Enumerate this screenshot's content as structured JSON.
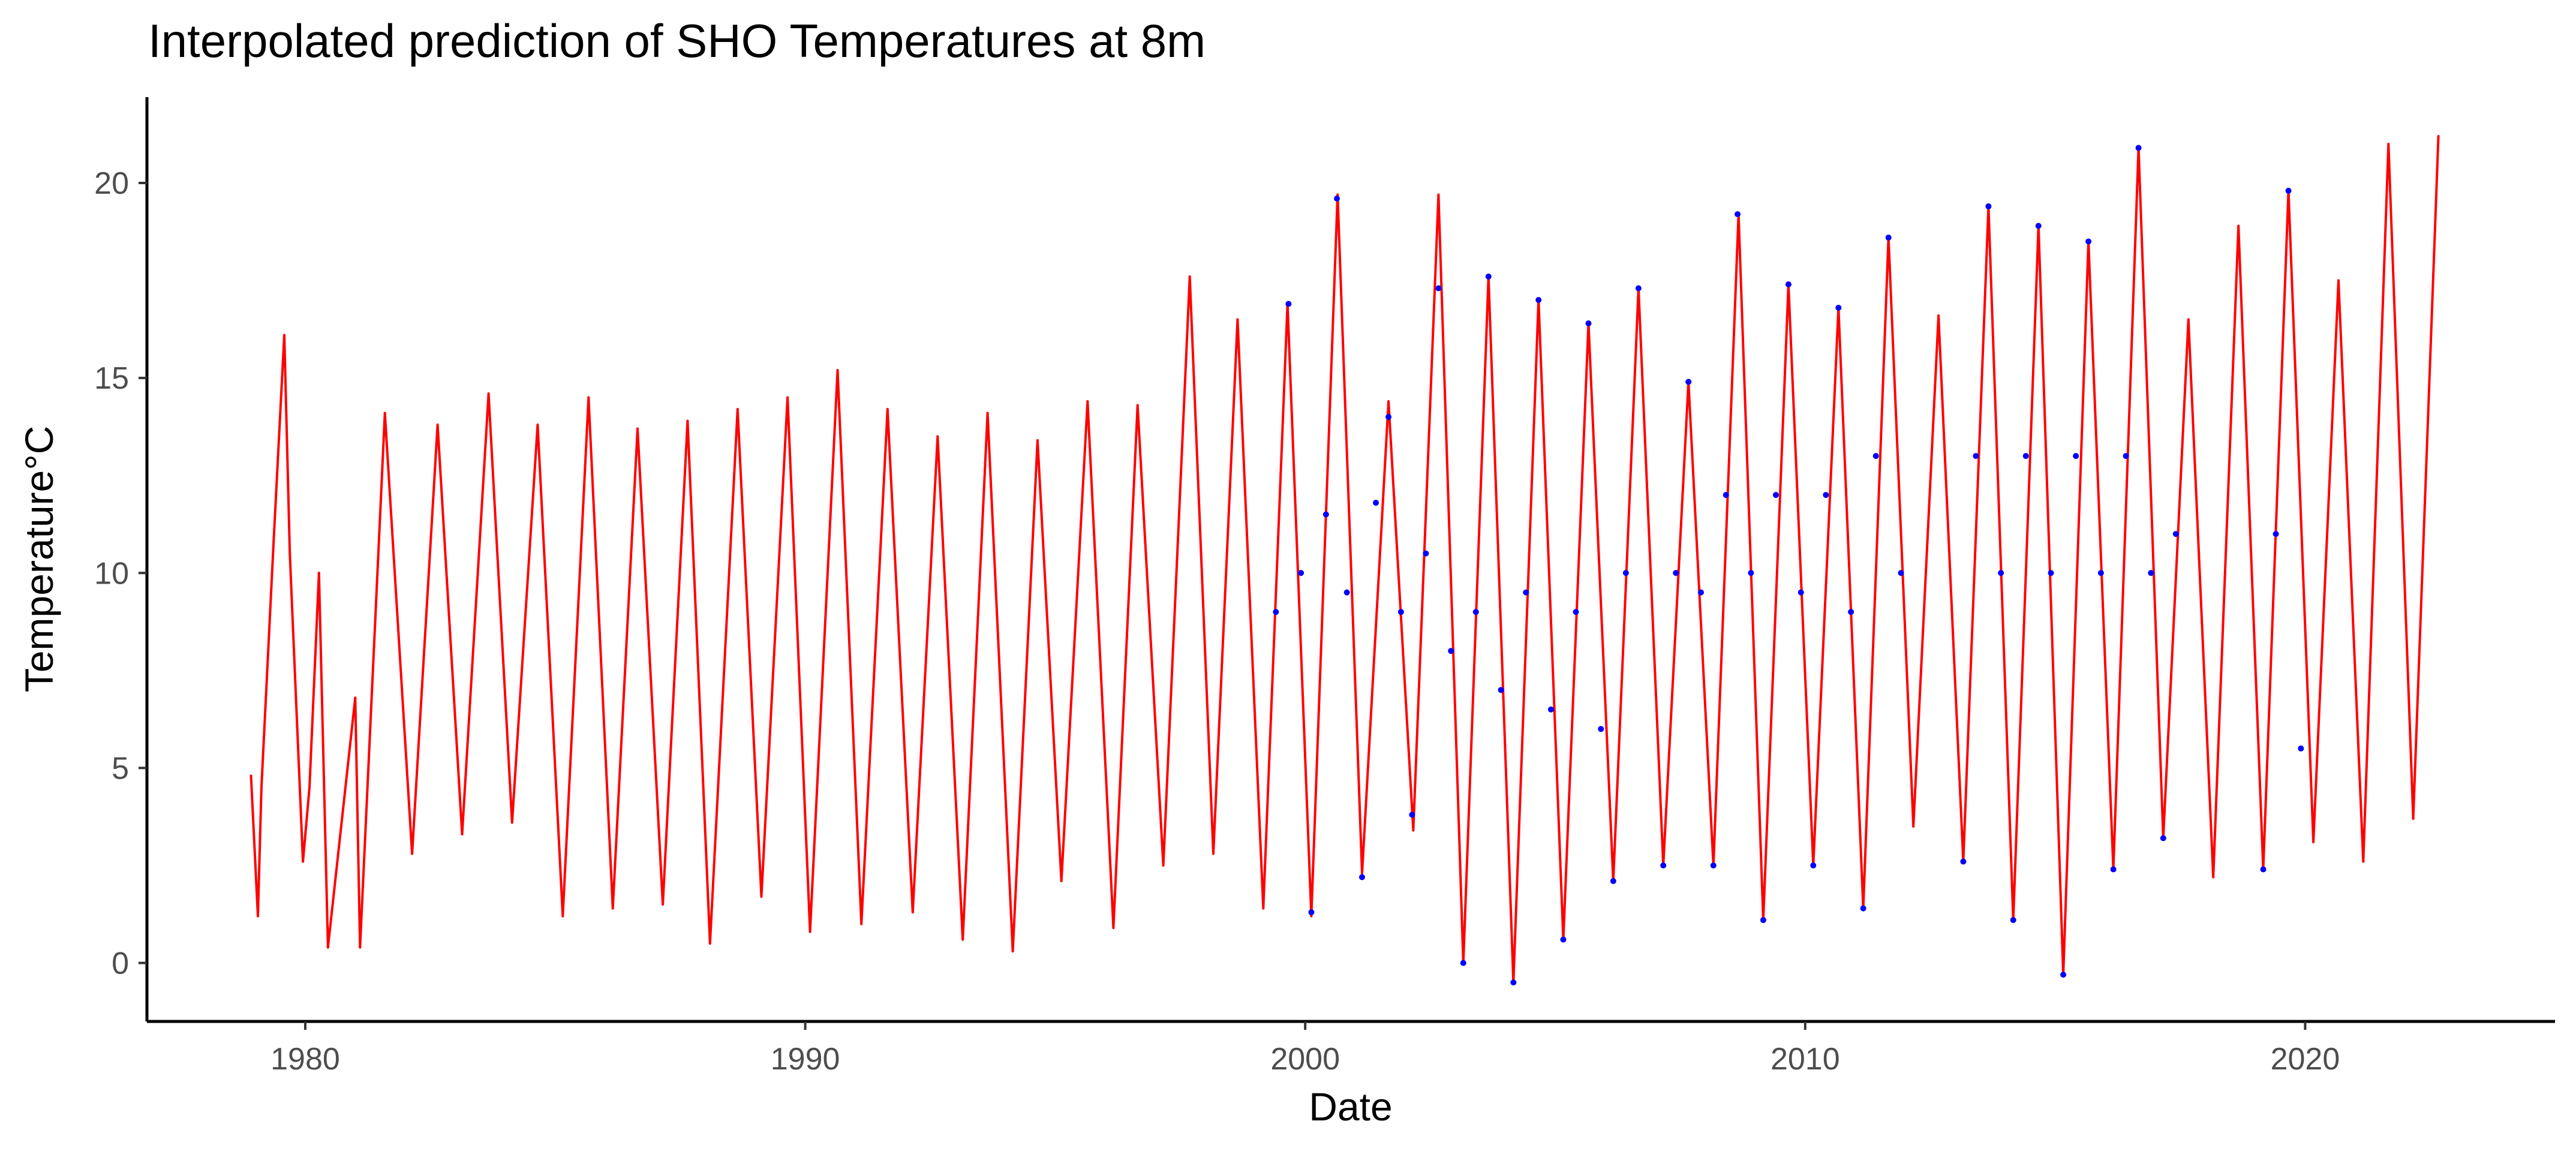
{
  "chart_data": {
    "type": "line",
    "title": "Interpolated prediction of SHO Temperatures at 8m",
    "xlabel": "Date",
    "ylabel": "Temperature°C",
    "xlim": [
      "1976-11-01",
      "2024-12-31"
    ],
    "ylim": [
      -1.5,
      22.2
    ],
    "x_ticks": [
      {
        "value": "1980-01-01",
        "label": "1980"
      },
      {
        "value": "1990-01-01",
        "label": "1990"
      },
      {
        "value": "2000-01-01",
        "label": "2000"
      },
      {
        "value": "2010-01-01",
        "label": "2010"
      },
      {
        "value": "2020-01-01",
        "label": "2020"
      }
    ],
    "y_ticks": [
      {
        "value": 0,
        "label": "0"
      },
      {
        "value": 5,
        "label": "5"
      },
      {
        "value": 10,
        "label": "10"
      },
      {
        "value": 15,
        "label": "15"
      },
      {
        "value": 20,
        "label": "20"
      }
    ],
    "grid": false,
    "legend": "none",
    "series": [
      {
        "color": "#ff0000",
        "style": "line",
        "x": [
          "1978-12-01",
          "1979-01-20",
          "1979-02-15",
          "1979-05-15",
          "1979-08-01",
          "1979-09-10",
          "1979-12-15",
          "1980-02-01",
          "1980-04-10",
          "1980-06-15",
          "1981-01-01",
          "1981-02-05",
          "1981-08-05",
          "1982-02-20",
          "1982-08-25",
          "1983-02-20",
          "1983-09-01",
          "1984-02-20",
          "1984-08-25",
          "1985-02-25",
          "1985-09-01",
          "1986-02-25",
          "1986-08-25",
          "1987-02-25",
          "1987-08-25",
          "1988-02-05",
          "1988-08-25",
          "1989-02-15",
          "1989-08-25",
          "1990-02-05",
          "1990-08-25",
          "1991-02-15",
          "1991-08-25",
          "1992-02-25",
          "1992-08-25",
          "1993-02-25",
          "1993-08-25",
          "1994-02-25",
          "1994-08-25",
          "1995-02-15",
          "1995-08-25",
          "1996-03-01",
          "1996-08-25",
          "1997-03-01",
          "1997-09-10",
          "1998-03-01",
          "1998-08-25",
          "1999-03-01",
          "1999-08-25",
          "2000-02-15",
          "2000-08-25",
          "2001-02-20",
          "2001-09-01",
          "2002-03-01",
          "2002-09-01",
          "2003-03-01",
          "2003-09-01",
          "2004-03-01",
          "2004-09-01",
          "2005-03-01",
          "2005-09-01",
          "2006-03-01",
          "2006-09-01",
          "2007-03-01",
          "2007-09-01",
          "2008-03-01",
          "2008-09-01",
          "2009-03-01",
          "2009-09-01",
          "2010-03-01",
          "2010-09-01",
          "2011-03-01",
          "2011-09-01",
          "2012-03-01",
          "2012-09-01",
          "2013-03-01",
          "2013-09-01",
          "2014-03-01",
          "2014-09-01",
          "2015-03-01",
          "2015-09-01",
          "2016-03-01",
          "2016-09-01",
          "2017-03-01",
          "2017-09-01",
          "2018-03-01",
          "2018-09-01",
          "2019-03-01",
          "2019-09-01",
          "2020-03-01",
          "2020-09-01",
          "2021-03-01",
          "2021-09-01",
          "2022-03-01",
          "2022-09-01"
        ],
        "y": [
          4.8,
          1.2,
          4.5,
          10.8,
          16.1,
          10.5,
          2.6,
          4.5,
          10.0,
          0.4,
          6.8,
          0.4,
          14.1,
          2.8,
          13.8,
          3.3,
          14.6,
          3.6,
          13.8,
          1.2,
          14.5,
          1.4,
          13.7,
          1.5,
          13.9,
          0.5,
          14.2,
          1.7,
          14.5,
          0.8,
          15.2,
          1.0,
          14.2,
          1.3,
          13.5,
          0.6,
          14.1,
          0.3,
          13.4,
          2.1,
          14.4,
          0.9,
          14.3,
          2.5,
          17.6,
          2.8,
          16.5,
          1.4,
          16.9,
          1.2,
          19.7,
          2.3,
          14.4,
          3.4,
          19.7,
          0.0,
          17.6,
          -0.5,
          17.0,
          0.6,
          16.4,
          2.1,
          17.3,
          2.5,
          14.9,
          2.5,
          19.2,
          1.1,
          17.4,
          2.5,
          16.8,
          1.4,
          18.6,
          3.5,
          16.6,
          2.6,
          19.4,
          1.1,
          18.9,
          -0.3,
          18.5,
          2.4,
          20.9,
          3.2,
          16.5,
          2.2,
          18.9,
          2.4,
          19.8,
          3.1,
          17.5,
          2.6,
          21.0,
          3.7,
          21.2
        ]
      },
      {
        "color": "#0000ff",
        "style": "points",
        "x": [
          "1999-06-01",
          "1999-09-01",
          "1999-12-01",
          "2000-02-15",
          "2000-06-01",
          "2000-08-20",
          "2000-11-01",
          "2001-02-20",
          "2001-06-01",
          "2001-09-01",
          "2001-12-01",
          "2002-02-20",
          "2002-06-01",
          "2002-09-01",
          "2002-12-01",
          "2003-03-01",
          "2003-06-01",
          "2003-09-01",
          "2003-12-01",
          "2004-03-01",
          "2004-06-01",
          "2004-09-01",
          "2004-12-01",
          "2005-03-01",
          "2005-06-01",
          "2005-09-01",
          "2005-12-01",
          "2006-03-01",
          "2006-06-01",
          "2006-09-01",
          "2007-03-01",
          "2007-06-01",
          "2007-09-01",
          "2007-12-01",
          "2008-03-01",
          "2008-06-01",
          "2008-08-25",
          "2008-12-01",
          "2009-03-01",
          "2009-06-01",
          "2009-09-01",
          "2009-12-01",
          "2010-03-01",
          "2010-06-01",
          "2010-09-01",
          "2010-12-01",
          "2011-03-01",
          "2011-06-01",
          "2011-09-01",
          "2011-12-01",
          "2013-03-01",
          "2013-06-01",
          "2013-09-01",
          "2013-12-01",
          "2014-03-01",
          "2014-06-01",
          "2014-09-01",
          "2014-12-01",
          "2015-03-01",
          "2015-06-01",
          "2015-09-01",
          "2015-12-01",
          "2016-03-01",
          "2016-06-01",
          "2016-09-01",
          "2016-12-01",
          "2017-03-01",
          "2017-06-01",
          "2019-03-01",
          "2019-06-01",
          "2019-09-01",
          "2019-12-01"
        ],
        "y": [
          9.0,
          16.9,
          10.0,
          1.3,
          11.5,
          19.6,
          9.5,
          2.2,
          11.8,
          14.0,
          9.0,
          3.8,
          10.5,
          17.3,
          8.0,
          0.0,
          9.0,
          17.6,
          7.0,
          -0.5,
          9.5,
          17.0,
          6.5,
          0.6,
          9.0,
          16.4,
          6.0,
          2.1,
          10.0,
          17.3,
          2.5,
          10.0,
          14.9,
          9.5,
          2.5,
          12.0,
          19.2,
          10.0,
          1.1,
          12.0,
          17.4,
          9.5,
          2.5,
          12.0,
          16.8,
          9.0,
          1.4,
          13.0,
          18.6,
          10.0,
          2.6,
          13.0,
          19.4,
          10.0,
          1.1,
          13.0,
          18.9,
          10.0,
          -0.3,
          13.0,
          18.5,
          10.0,
          2.4,
          13.0,
          20.9,
          10.0,
          3.2,
          11.0,
          2.4,
          11.0,
          19.8,
          5.5
        ]
      }
    ]
  }
}
